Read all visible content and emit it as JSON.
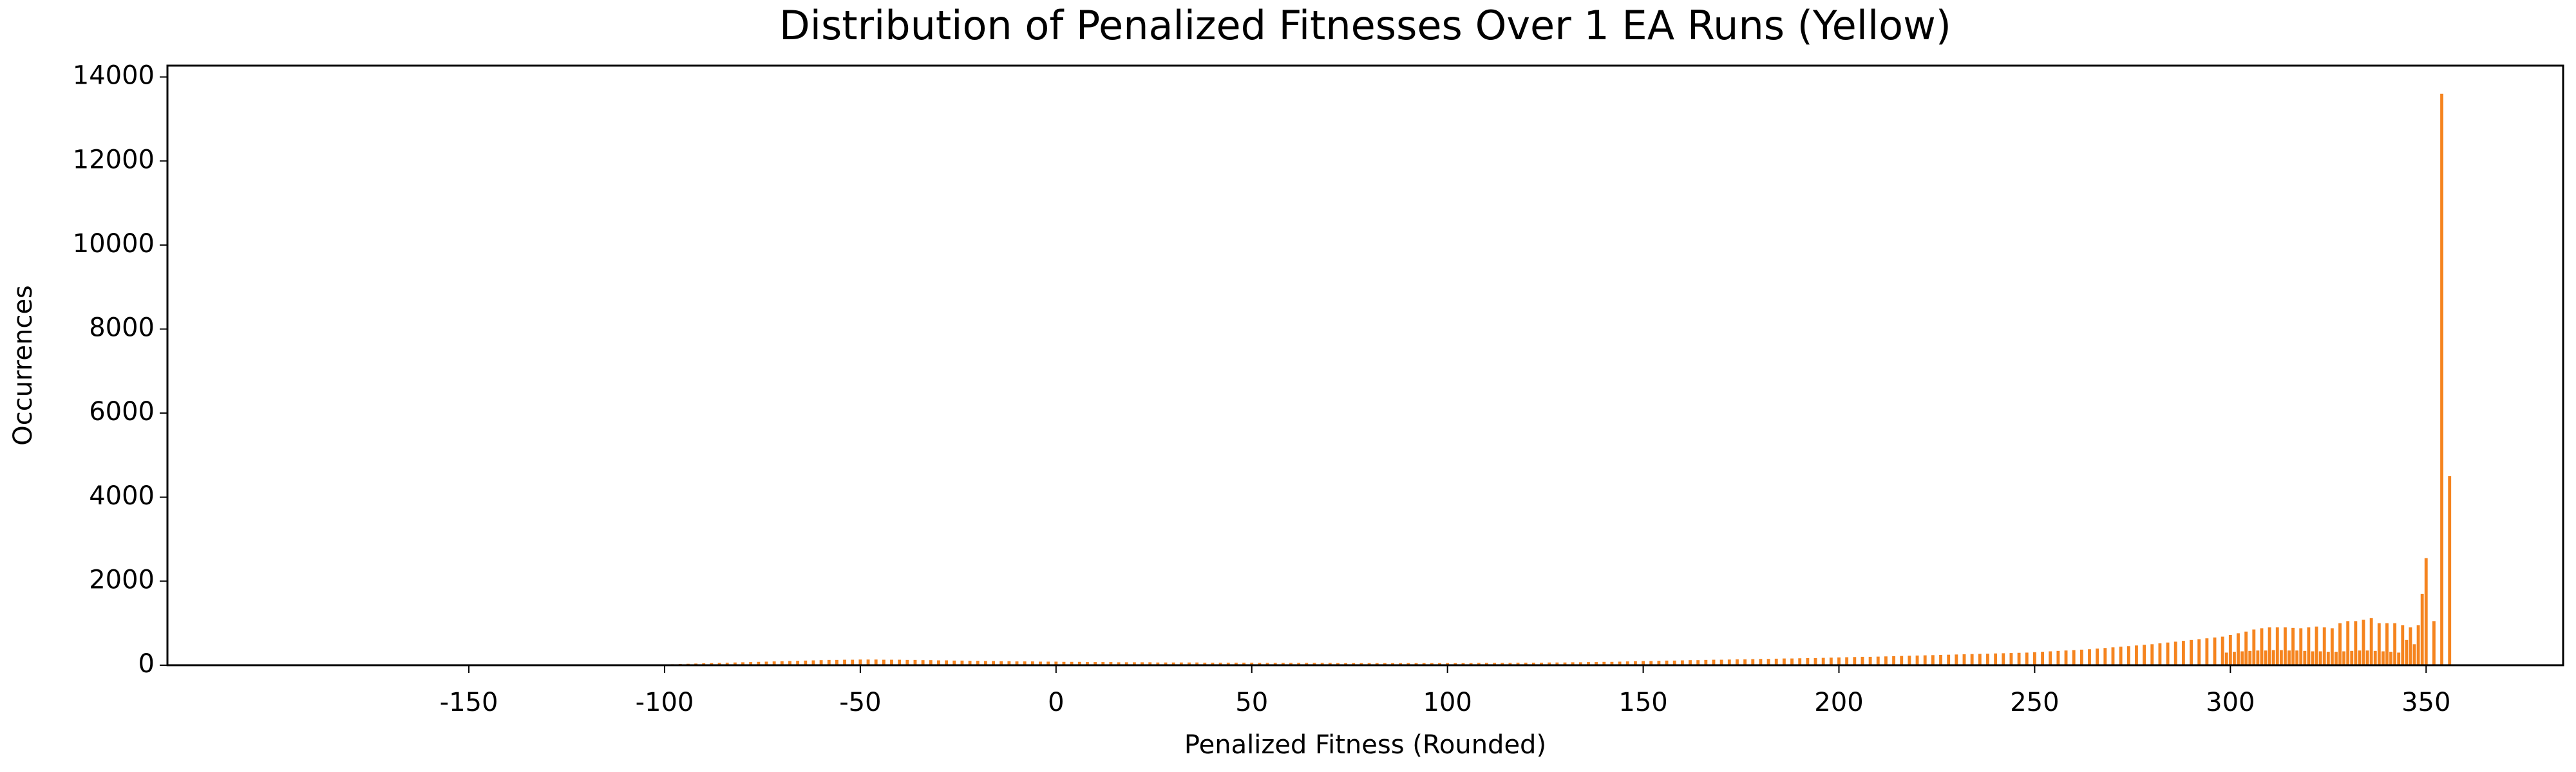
{
  "chart_data": {
    "type": "bar",
    "title": "Distribution of Penalized Fitnesses Over 1 EA Runs (Yellow)",
    "xlabel": "Penalized Fitness (Rounded)",
    "ylabel": "Occurrences",
    "color": "#f5841f",
    "xlim": [
      -227,
      385
    ],
    "ylim": [
      0,
      14270
    ],
    "xticks": [
      -150,
      -100,
      -50,
      0,
      50,
      100,
      150,
      200,
      250,
      300,
      350
    ],
    "yticks": [
      0,
      2000,
      4000,
      6000,
      8000,
      10000,
      12000,
      14000
    ],
    "x": [
      -100,
      -98,
      -96,
      -94,
      -92,
      -90,
      -88,
      -86,
      -84,
      -82,
      -80,
      -78,
      -76,
      -74,
      -72,
      -70,
      -68,
      -66,
      -64,
      -62,
      -60,
      -58,
      -56,
      -54,
      -52,
      -50,
      -48,
      -46,
      -44,
      -42,
      -40,
      -38,
      -36,
      -34,
      -32,
      -30,
      -28,
      -26,
      -24,
      -22,
      -20,
      -18,
      -16,
      -14,
      -12,
      -10,
      -8,
      -6,
      -4,
      -2,
      0,
      2,
      4,
      6,
      8,
      10,
      12,
      14,
      16,
      18,
      20,
      22,
      24,
      26,
      28,
      30,
      32,
      34,
      36,
      38,
      40,
      42,
      44,
      46,
      48,
      50,
      52,
      54,
      56,
      58,
      60,
      62,
      64,
      66,
      68,
      70,
      72,
      74,
      76,
      78,
      80,
      82,
      84,
      86,
      88,
      90,
      92,
      94,
      96,
      98,
      100,
      102,
      104,
      106,
      108,
      110,
      112,
      114,
      116,
      118,
      120,
      122,
      124,
      126,
      128,
      130,
      132,
      134,
      136,
      138,
      140,
      142,
      144,
      146,
      148,
      150,
      152,
      154,
      156,
      158,
      160,
      162,
      164,
      166,
      168,
      170,
      172,
      174,
      176,
      178,
      180,
      182,
      184,
      186,
      188,
      190,
      192,
      194,
      196,
      198,
      200,
      202,
      204,
      206,
      208,
      210,
      212,
      214,
      216,
      218,
      220,
      222,
      224,
      226,
      228,
      230,
      232,
      234,
      236,
      238,
      240,
      242,
      244,
      246,
      248,
      250,
      252,
      254,
      256,
      258,
      260,
      262,
      264,
      266,
      268,
      270,
      272,
      274,
      276,
      278,
      280,
      282,
      284,
      286,
      288,
      290,
      292,
      294,
      296,
      298,
      299,
      300,
      301,
      302,
      303,
      304,
      305,
      306,
      307,
      308,
      309,
      310,
      311,
      312,
      313,
      314,
      315,
      316,
      317,
      318,
      319,
      320,
      321,
      322,
      323,
      324,
      325,
      326,
      327,
      328,
      329,
      330,
      331,
      332,
      333,
      334,
      335,
      336,
      337,
      338,
      339,
      340,
      341,
      342,
      343,
      344,
      345,
      346,
      347,
      348,
      349,
      350,
      351,
      352,
      353,
      354,
      355,
      356
    ],
    "values": [
      20,
      25,
      30,
      35,
      40,
      45,
      50,
      55,
      60,
      65,
      70,
      75,
      80,
      85,
      90,
      95,
      100,
      105,
      110,
      115,
      120,
      125,
      125,
      130,
      130,
      135,
      135,
      135,
      130,
      130,
      130,
      125,
      125,
      120,
      120,
      115,
      115,
      110,
      110,
      105,
      105,
      100,
      100,
      95,
      95,
      90,
      90,
      90,
      85,
      85,
      85,
      80,
      80,
      80,
      75,
      75,
      75,
      75,
      70,
      70,
      70,
      70,
      70,
      65,
      65,
      65,
      65,
      65,
      65,
      60,
      60,
      60,
      60,
      60,
      60,
      60,
      55,
      55,
      55,
      55,
      55,
      55,
      55,
      55,
      55,
      55,
      50,
      50,
      50,
      50,
      50,
      50,
      50,
      50,
      50,
      50,
      50,
      50,
      50,
      50,
      50,
      50,
      50,
      50,
      55,
      55,
      55,
      55,
      55,
      60,
      60,
      60,
      60,
      65,
      65,
      65,
      70,
      70,
      75,
      75,
      80,
      80,
      85,
      90,
      95,
      100,
      100,
      105,
      110,
      110,
      115,
      120,
      120,
      125,
      130,
      130,
      135,
      140,
      140,
      145,
      150,
      150,
      155,
      160,
      160,
      165,
      170,
      170,
      175,
      180,
      185,
      190,
      195,
      200,
      200,
      205,
      210,
      215,
      220,
      225,
      230,
      235,
      240,
      245,
      250,
      255,
      260,
      265,
      270,
      275,
      280,
      285,
      290,
      295,
      300,
      310,
      320,
      330,
      340,
      350,
      360,
      370,
      380,
      395,
      410,
      425,
      440,
      455,
      470,
      485,
      500,
      520,
      540,
      560,
      580,
      600,
      620,
      640,
      660,
      680,
      300,
      720,
      320,
      760,
      330,
      800,
      340,
      850,
      350,
      880,
      350,
      900,
      360,
      900,
      360,
      900,
      350,
      890,
      350,
      880,
      340,
      900,
      330,
      920,
      330,
      900,
      320,
      880,
      320,
      1000,
      330,
      1050,
      340,
      1050,
      350,
      1080,
      350,
      1120,
      340,
      1000,
      330,
      1000,
      320,
      1000,
      300,
      950,
      600,
      900,
      500,
      950,
      1700,
      2550,
      0,
      1050,
      0,
      13600,
      0,
      4500
    ]
  }
}
